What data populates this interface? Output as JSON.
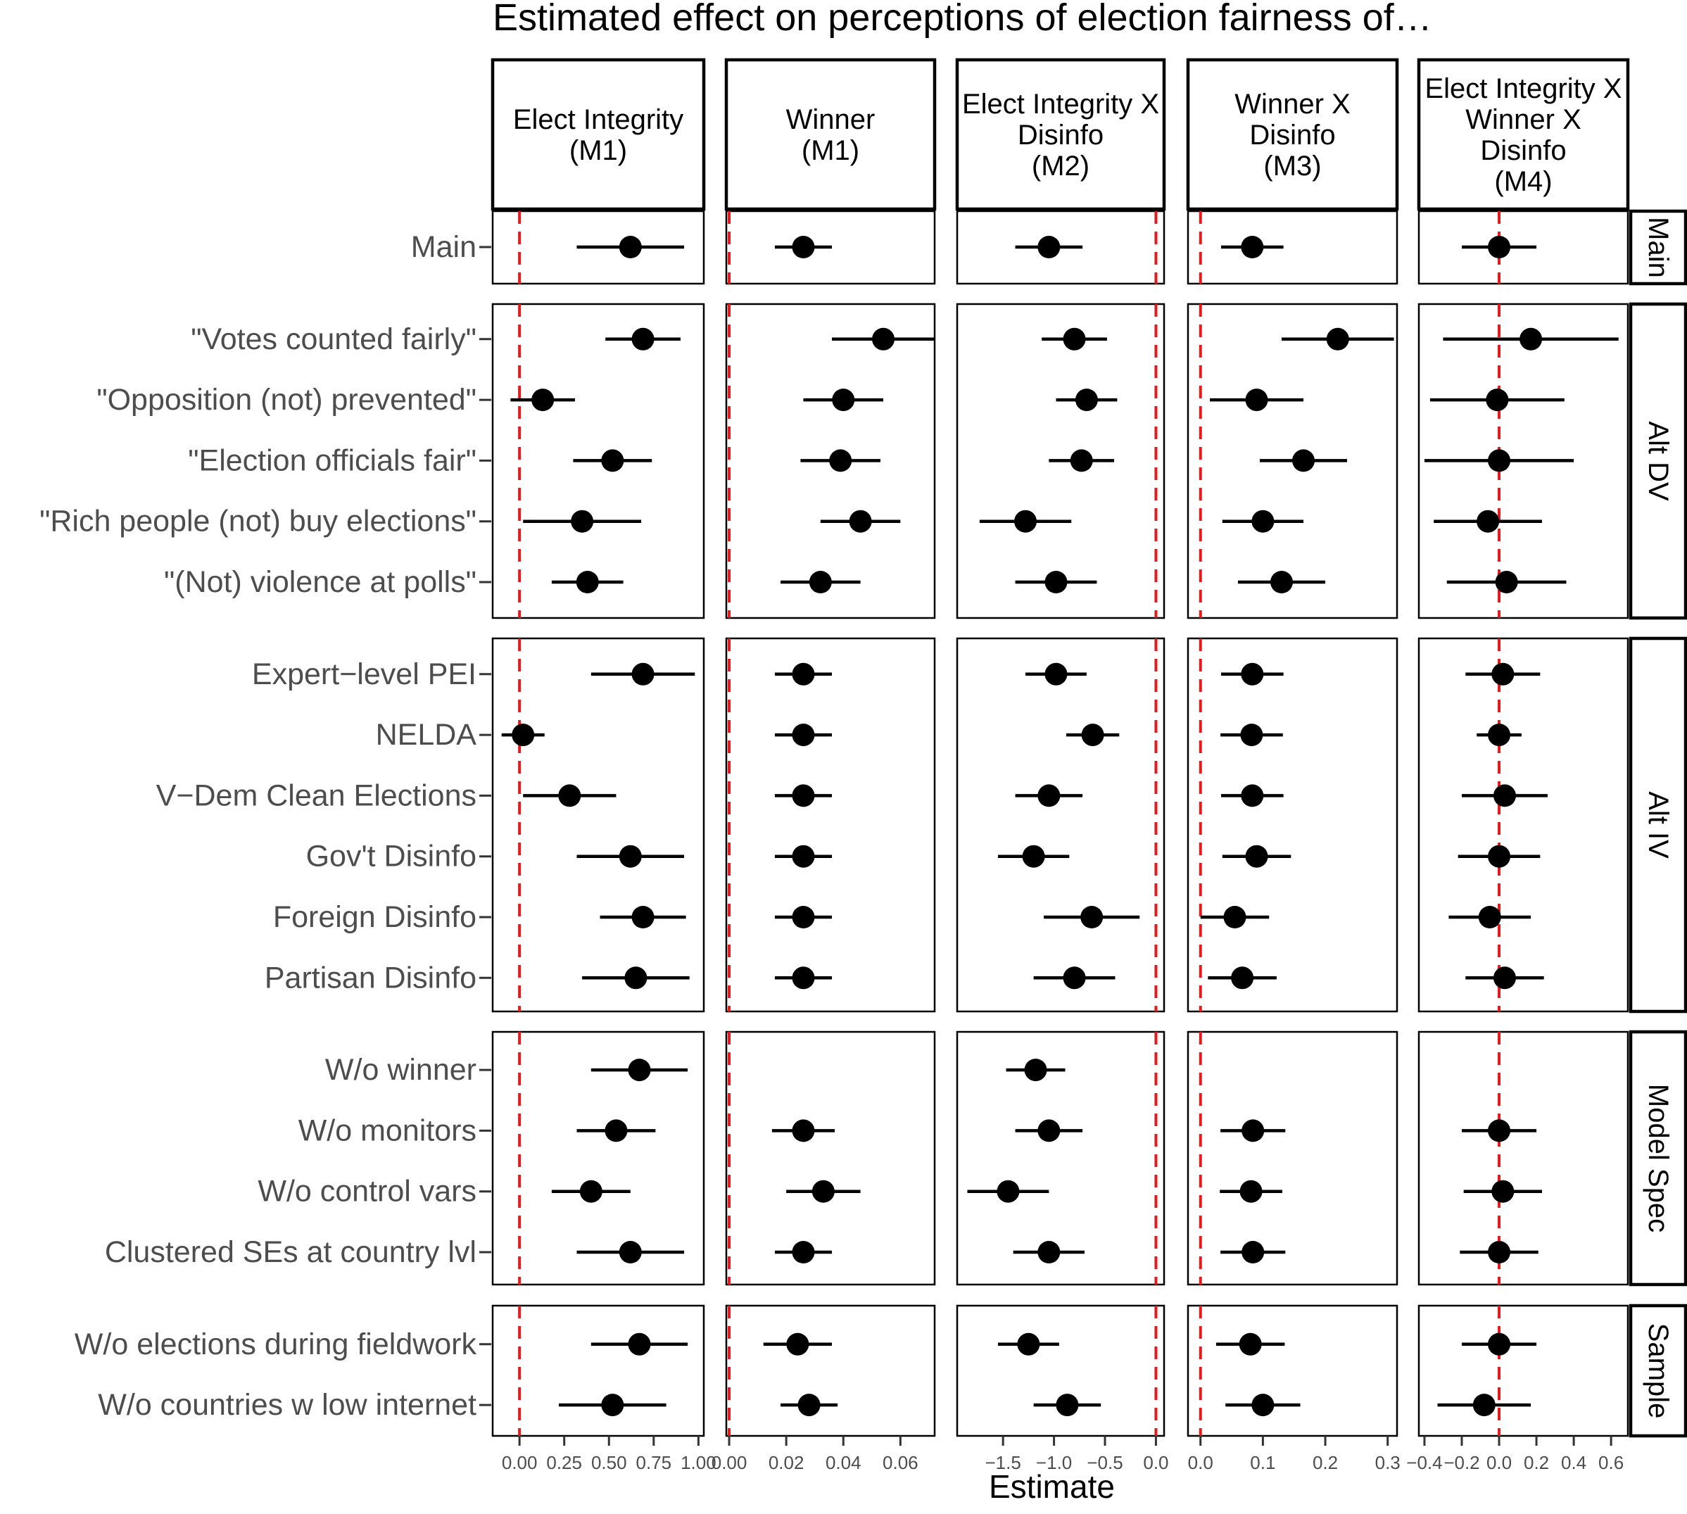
{
  "chart_data": {
    "type": "scatter",
    "subtype": "faceted coefficient plot with confidence intervals",
    "title": "Estimated effect on perceptions of election fairness of…",
    "xlabel": "Estimate",
    "reference_line": {
      "x": 0,
      "style": "dashed",
      "color": "#e41a1c"
    },
    "colors": {
      "point": "#000000",
      "panel_border": "#000000",
      "reference": "#e41a1c",
      "row_label": "#4d4d4d"
    },
    "columns": [
      {
        "label": "Elect Integrity\n(M1)",
        "xlim": [
          -0.15,
          1.03
        ],
        "ticks": [
          0.0,
          0.25,
          0.5,
          0.75,
          1.0
        ],
        "tick_labels": [
          "0.00",
          "0.25",
          "0.50",
          "0.75",
          "1.00"
        ]
      },
      {
        "label": "Winner\n(M1)",
        "xlim": [
          -0.001,
          0.072
        ],
        "ticks": [
          0.0,
          0.02,
          0.04,
          0.06
        ],
        "tick_labels": [
          "0.00",
          "0.02",
          "0.04",
          "0.06"
        ]
      },
      {
        "label": "Elect Integrity X\nDisinfo\n(M2)",
        "xlim": [
          -1.95,
          0.08
        ],
        "ticks": [
          -1.5,
          -1.0,
          -0.5,
          0.0
        ],
        "tick_labels": [
          "−1.5",
          "−1.0",
          "−0.5",
          "0.0"
        ]
      },
      {
        "label": "Winner X\nDisinfo\n(M3)",
        "xlim": [
          -0.02,
          0.315
        ],
        "ticks": [
          0.0,
          0.1,
          0.2,
          0.3
        ],
        "tick_labels": [
          "0.0",
          "0.1",
          "0.2",
          "0.3"
        ]
      },
      {
        "label": "Elect Integrity X\nWinner X\nDisinfo\n(M4)",
        "xlim": [
          -0.43,
          0.69
        ],
        "ticks": [
          -0.4,
          -0.2,
          0.0,
          0.2,
          0.4,
          0.6
        ],
        "tick_labels": [
          "−0.4",
          "−0.2",
          "0.0",
          "0.2",
          "0.4",
          "0.6"
        ]
      }
    ],
    "groups": [
      {
        "label": "Main",
        "rows": [
          {
            "label": "Main",
            "est": [
              [
                0.62,
                0.32,
                0.92
              ],
              [
                0.026,
                0.016,
                0.036
              ],
              [
                -1.05,
                -1.38,
                -0.72
              ],
              [
                0.083,
                0.033,
                0.133
              ],
              [
                0.0,
                -0.2,
                0.2
              ]
            ]
          }
        ]
      },
      {
        "label": "Alt DV",
        "rows": [
          {
            "label": "\"Votes counted fairly\"",
            "est": [
              [
                0.69,
                0.48,
                0.9
              ],
              [
                0.054,
                0.036,
                0.072
              ],
              [
                -0.8,
                -1.12,
                -0.48
              ],
              [
                0.22,
                0.13,
                0.31
              ],
              [
                0.17,
                -0.3,
                0.64
              ]
            ]
          },
          {
            "label": "\"Opposition (not) prevented\"",
            "est": [
              [
                0.13,
                -0.05,
                0.31
              ],
              [
                0.04,
                0.026,
                0.054
              ],
              [
                -0.68,
                -0.98,
                -0.38
              ],
              [
                0.09,
                0.015,
                0.165
              ],
              [
                -0.01,
                -0.37,
                0.35
              ]
            ]
          },
          {
            "label": "\"Election officials fair\"",
            "est": [
              [
                0.52,
                0.3,
                0.74
              ],
              [
                0.039,
                0.025,
                0.053
              ],
              [
                -0.73,
                -1.05,
                -0.41
              ],
              [
                0.165,
                0.095,
                0.235
              ],
              [
                0.0,
                -0.4,
                0.4
              ]
            ]
          },
          {
            "label": "\"Rich people (not) buy elections\"",
            "est": [
              [
                0.35,
                0.02,
                0.68
              ],
              [
                0.046,
                0.032,
                0.06
              ],
              [
                -1.28,
                -1.73,
                -0.83
              ],
              [
                0.1,
                0.035,
                0.165
              ],
              [
                -0.06,
                -0.35,
                0.23
              ]
            ]
          },
          {
            "label": "\"(Not) violence at polls\"",
            "est": [
              [
                0.38,
                0.18,
                0.58
              ],
              [
                0.032,
                0.018,
                0.046
              ],
              [
                -0.98,
                -1.38,
                -0.58
              ],
              [
                0.13,
                0.06,
                0.2
              ],
              [
                0.04,
                -0.28,
                0.36
              ]
            ]
          }
        ]
      },
      {
        "label": "Alt IV",
        "rows": [
          {
            "label": "Expert−level PEI",
            "est": [
              [
                0.69,
                0.4,
                0.98
              ],
              [
                0.026,
                0.016,
                0.036
              ],
              [
                -0.98,
                -1.28,
                -0.68
              ],
              [
                0.083,
                0.033,
                0.133
              ],
              [
                0.02,
                -0.18,
                0.22
              ]
            ]
          },
          {
            "label": "NELDA",
            "est": [
              [
                0.02,
                -0.1,
                0.14
              ],
              [
                0.026,
                0.016,
                0.036
              ],
              [
                -0.62,
                -0.88,
                -0.36
              ],
              [
                0.082,
                0.032,
                0.132
              ],
              [
                0.0,
                -0.12,
                0.12
              ]
            ]
          },
          {
            "label": "V−Dem Clean Elections",
            "est": [
              [
                0.28,
                0.02,
                0.54
              ],
              [
                0.026,
                0.016,
                0.036
              ],
              [
                -1.05,
                -1.38,
                -0.72
              ],
              [
                0.083,
                0.033,
                0.133
              ],
              [
                0.03,
                -0.2,
                0.26
              ]
            ]
          },
          {
            "label": "Gov't Disinfo",
            "est": [
              [
                0.62,
                0.32,
                0.92
              ],
              [
                0.026,
                0.016,
                0.036
              ],
              [
                -1.2,
                -1.55,
                -0.85
              ],
              [
                0.09,
                0.035,
                0.145
              ],
              [
                0.0,
                -0.22,
                0.22
              ]
            ]
          },
          {
            "label": "Foreign Disinfo",
            "est": [
              [
                0.69,
                0.45,
                0.93
              ],
              [
                0.026,
                0.016,
                0.036
              ],
              [
                -0.63,
                -1.1,
                -0.16
              ],
              [
                0.055,
                0.0,
                0.11
              ],
              [
                -0.05,
                -0.27,
                0.17
              ]
            ]
          },
          {
            "label": "Partisan Disinfo",
            "est": [
              [
                0.65,
                0.35,
                0.95
              ],
              [
                0.026,
                0.016,
                0.036
              ],
              [
                -0.8,
                -1.2,
                -0.4
              ],
              [
                0.067,
                0.012,
                0.122
              ],
              [
                0.03,
                -0.18,
                0.24
              ]
            ]
          }
        ]
      },
      {
        "label": "Model Spec",
        "rows": [
          {
            "label": "W/o winner",
            "est": [
              [
                0.67,
                0.4,
                0.94
              ],
              null,
              [
                -1.18,
                -1.47,
                -0.89
              ],
              null,
              null
            ]
          },
          {
            "label": "W/o monitors",
            "est": [
              [
                0.54,
                0.32,
                0.76
              ],
              [
                0.026,
                0.015,
                0.037
              ],
              [
                -1.05,
                -1.38,
                -0.72
              ],
              [
                0.084,
                0.032,
                0.136
              ],
              [
                0.0,
                -0.2,
                0.2
              ]
            ]
          },
          {
            "label": "W/o control vars",
            "est": [
              [
                0.4,
                0.18,
                0.62
              ],
              [
                0.033,
                0.02,
                0.046
              ],
              [
                -1.45,
                -1.85,
                -1.05
              ],
              [
                0.081,
                0.031,
                0.131
              ],
              [
                0.02,
                -0.19,
                0.23
              ]
            ]
          },
          {
            "label": "Clustered SEs at country lvl",
            "est": [
              [
                0.62,
                0.32,
                0.92
              ],
              [
                0.026,
                0.016,
                0.036
              ],
              [
                -1.05,
                -1.4,
                -0.7
              ],
              [
                0.084,
                0.032,
                0.136
              ],
              [
                0.0,
                -0.21,
                0.21
              ]
            ]
          }
        ]
      },
      {
        "label": "Sample",
        "rows": [
          {
            "label": "W/o elections during fieldwork",
            "est": [
              [
                0.67,
                0.4,
                0.94
              ],
              [
                0.024,
                0.012,
                0.036
              ],
              [
                -1.25,
                -1.55,
                -0.95
              ],
              [
                0.08,
                0.025,
                0.135
              ],
              [
                0.0,
                -0.2,
                0.2
              ]
            ]
          },
          {
            "label": "W/o countries w low internet",
            "est": [
              [
                0.52,
                0.22,
                0.82
              ],
              [
                0.028,
                0.018,
                0.038
              ],
              [
                -0.87,
                -1.2,
                -0.54
              ],
              [
                0.1,
                0.04,
                0.16
              ],
              [
                -0.08,
                -0.33,
                0.17
              ]
            ]
          }
        ]
      }
    ]
  }
}
